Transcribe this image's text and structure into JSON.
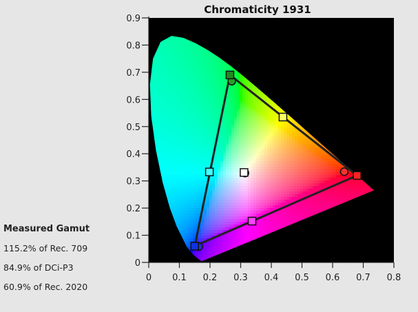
{
  "chart_data": {
    "type": "scatter",
    "title": "Chromaticity 1931",
    "xlabel": "",
    "ylabel": "",
    "xlim": [
      0,
      0.8
    ],
    "ylim": [
      0,
      0.9
    ],
    "x_ticks": [
      0,
      0.1,
      0.2,
      0.3,
      0.4,
      0.5,
      0.6,
      0.7,
      0.8
    ],
    "y_ticks": [
      0,
      0.1,
      0.2,
      0.3,
      0.4,
      0.5,
      0.6,
      0.7,
      0.8,
      0.9
    ],
    "x_tick_labels": [
      "0",
      "0.1",
      "0.2",
      "0.3",
      "0.4",
      "0.5",
      "0.6",
      "0.7",
      "0.8"
    ],
    "y_tick_labels": [
      "0",
      "0.1",
      "0.2",
      "0.3",
      "0.4",
      "0.5",
      "0.6",
      "0.7",
      "0.8",
      "0.9"
    ],
    "grid": false,
    "plot_background": "#000000",
    "spectral_locus": [
      [
        0.1741,
        0.005
      ],
      [
        0.1738,
        0.0049
      ],
      [
        0.1728,
        0.0048
      ],
      [
        0.1714,
        0.0051
      ],
      [
        0.1689,
        0.0069
      ],
      [
        0.1644,
        0.0109
      ],
      [
        0.1566,
        0.0177
      ],
      [
        0.144,
        0.0297
      ],
      [
        0.1241,
        0.0578
      ],
      [
        0.0913,
        0.1327
      ],
      [
        0.0687,
        0.2007
      ],
      [
        0.0454,
        0.295
      ],
      [
        0.0235,
        0.4127
      ],
      [
        0.0082,
        0.5384
      ],
      [
        0.0039,
        0.6548
      ],
      [
        0.0139,
        0.7502
      ],
      [
        0.0389,
        0.812
      ],
      [
        0.0743,
        0.8338
      ],
      [
        0.1142,
        0.8262
      ],
      [
        0.1547,
        0.8059
      ],
      [
        0.1929,
        0.7816
      ],
      [
        0.2296,
        0.7543
      ],
      [
        0.2658,
        0.7243
      ],
      [
        0.3016,
        0.6923
      ],
      [
        0.3373,
        0.6589
      ],
      [
        0.3731,
        0.6245
      ],
      [
        0.4087,
        0.5896
      ],
      [
        0.4441,
        0.5547
      ],
      [
        0.4788,
        0.5202
      ],
      [
        0.5125,
        0.4866
      ],
      [
        0.5448,
        0.4544
      ],
      [
        0.5752,
        0.4242
      ],
      [
        0.6029,
        0.3965
      ],
      [
        0.627,
        0.3725
      ],
      [
        0.6482,
        0.3514
      ],
      [
        0.6658,
        0.334
      ],
      [
        0.6801,
        0.3197
      ],
      [
        0.6915,
        0.3083
      ],
      [
        0.7006,
        0.2993
      ],
      [
        0.7079,
        0.292
      ],
      [
        0.714,
        0.2859
      ],
      [
        0.719,
        0.2809
      ],
      [
        0.723,
        0.277
      ],
      [
        0.726,
        0.274
      ],
      [
        0.7283,
        0.2717
      ],
      [
        0.73,
        0.27
      ],
      [
        0.7311,
        0.2689
      ],
      [
        0.732,
        0.268
      ],
      [
        0.7334,
        0.2666
      ],
      [
        0.7347,
        0.2653
      ]
    ],
    "measured_gamut": {
      "vertices": [
        [
          0.265,
          0.69
        ],
        [
          0.68,
          0.32
        ],
        [
          0.15,
          0.06
        ]
      ],
      "line_color": "#222222"
    },
    "series": [
      {
        "marker": "square",
        "points": [
          {
            "x": 0.265,
            "y": 0.69,
            "color": "#1e8c1e"
          },
          {
            "x": 0.438,
            "y": 0.535,
            "color": "#ffff66"
          },
          {
            "x": 0.68,
            "y": 0.32,
            "color": "#ff2222"
          },
          {
            "x": 0.337,
            "y": 0.152,
            "color": "#ff44ff"
          },
          {
            "x": 0.15,
            "y": 0.06,
            "color": "#1133dd"
          },
          {
            "x": 0.198,
            "y": 0.333,
            "color": "#44ffff"
          },
          {
            "x": 0.311,
            "y": 0.331,
            "color": "#ffffff"
          }
        ]
      },
      {
        "marker": "circle",
        "points": [
          {
            "x": 0.271,
            "y": 0.667,
            "color": "#22a02a"
          },
          {
            "x": 0.638,
            "y": 0.334,
            "color": "#ee3333"
          },
          {
            "x": 0.163,
            "y": 0.058,
            "color": "#2233cc"
          },
          {
            "x": 0.314,
            "y": 0.329,
            "color": "#ffffff"
          }
        ]
      }
    ]
  },
  "gamut": {
    "title": "Measured Gamut",
    "lines": [
      "115.2% of Rec. 709",
      "84.9% of DCi-P3",
      "60.9% of Rec. 2020"
    ]
  }
}
